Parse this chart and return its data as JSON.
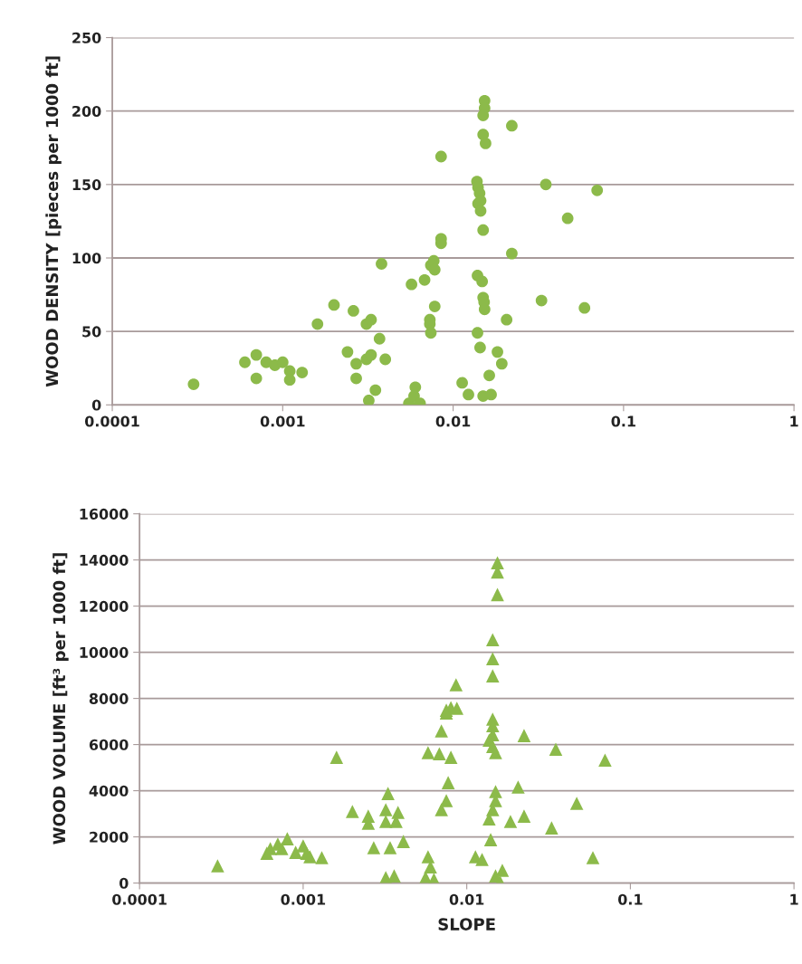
{
  "chart_data": [
    {
      "type": "scatter",
      "ylabel": "WOOD DENSITY [pieces per 1000 ft]",
      "log": "x",
      "grid": "y",
      "marker": "circle",
      "xlim": [
        0.0001,
        1
      ],
      "xticks": [
        0.0001,
        0.001,
        0.01,
        0.1,
        1
      ],
      "ylim": [
        0,
        250
      ],
      "yticks": [
        0,
        50,
        100,
        150,
        200,
        250
      ],
      "series": [
        {
          "color": "#8cba4a",
          "x": [
            0.0003,
            0.0006,
            0.0007,
            0.0007,
            0.0008,
            0.0009,
            0.001,
            0.0011,
            0.0011,
            0.0013,
            0.0016,
            0.002,
            0.0026,
            0.0024,
            0.0027,
            0.0027,
            0.0031,
            0.0031,
            0.0033,
            0.0033,
            0.0032,
            0.0035,
            0.0037,
            0.0038,
            0.004,
            0.0055,
            0.0059,
            0.006,
            0.0064,
            0.0057,
            0.0068,
            0.0074,
            0.0077,
            0.0078,
            0.0078,
            0.0073,
            0.0073,
            0.0074,
            0.0085,
            0.0085,
            0.0085,
            0.0153,
            0.0153,
            0.015,
            0.015,
            0.0155,
            0.0221,
            0.0138,
            0.014,
            0.0143,
            0.014,
            0.0145,
            0.0145,
            0.035,
            0.07,
            0.047,
            0.015,
            0.0221,
            0.033,
            0.059,
            0.0139,
            0.0148,
            0.015,
            0.0152,
            0.0153,
            0.0206,
            0.0139,
            0.0144,
            0.0182,
            0.0193,
            0.0163,
            0.0113,
            0.0123,
            0.015,
            0.0167
          ],
          "values": [
            14,
            29,
            34,
            18,
            29,
            27,
            29,
            23,
            17,
            22,
            55,
            68,
            64,
            36,
            28,
            18,
            55,
            31,
            34,
            58,
            3,
            10,
            45,
            96,
            31,
            1,
            6,
            12,
            1,
            82,
            85,
            95,
            98,
            92,
            67,
            55,
            58,
            49,
            113,
            110,
            169,
            207,
            202,
            197,
            184,
            178,
            190,
            152,
            148,
            144,
            137,
            139,
            132,
            150,
            146,
            127,
            119,
            103,
            71,
            66,
            88,
            84,
            73,
            70,
            65,
            58,
            49,
            39,
            36,
            28,
            20,
            15,
            7,
            6,
            7
          ]
        }
      ]
    },
    {
      "type": "scatter",
      "ylabel": "WOOD VOLUME [ft³ per 1000 ft]",
      "xlabel": "SLOPE",
      "log": "x",
      "grid": "y",
      "marker": "triangle",
      "xlim": [
        0.0001,
        1
      ],
      "xticks": [
        0.0001,
        0.001,
        0.01,
        0.1,
        1
      ],
      "ylim": [
        0,
        16000
      ],
      "yticks": [
        0,
        2000,
        4000,
        6000,
        8000,
        10000,
        12000,
        14000,
        16000
      ],
      "series": [
        {
          "color": "#8cba4a",
          "x": [
            0.0003,
            0.0006,
            0.00063,
            0.0007,
            0.0008,
            0.00074,
            0.0009,
            0.001,
            0.00105,
            0.0011,
            0.0013,
            0.0016,
            0.002,
            0.0154,
            0.0154,
            0.0154,
            0.0144,
            0.0144,
            0.0144,
            0.0086,
            0.008,
            0.0075,
            0.0087,
            0.0075,
            0.007,
            0.0058,
            0.0068,
            0.008,
            0.0144,
            0.0144,
            0.0144,
            0.0137,
            0.0144,
            0.015,
            0.0224,
            0.035,
            0.07,
            0.0033,
            0.0032,
            0.0025,
            0.0025,
            0.0032,
            0.0038,
            0.0037,
            0.0027,
            0.0034,
            0.0041,
            0.0032,
            0.0036,
            0.0077,
            0.0075,
            0.007,
            0.0058,
            0.006,
            0.0056,
            0.0063,
            0.015,
            0.015,
            0.0144,
            0.0137,
            0.0185,
            0.0206,
            0.0224,
            0.014,
            0.0113,
            0.0124,
            0.015,
            0.0165,
            0.016,
            0.033,
            0.047,
            0.059
          ],
          "values": [
            750,
            1290,
            1490,
            1690,
            1920,
            1490,
            1330,
            1610,
            1290,
            1140,
            1100,
            5450,
            3100,
            13880,
            13480,
            12500,
            10540,
            9720,
            8980,
            8590,
            7600,
            7490,
            7570,
            7370,
            6590,
            5650,
            5600,
            5450,
            7100,
            6820,
            6430,
            6190,
            5920,
            5650,
            6390,
            5800,
            5330,
            3880,
            3180,
            2900,
            2590,
            2670,
            3060,
            2670,
            1530,
            1530,
            1800,
            235,
            310,
            4350,
            3570,
            3180,
            1140,
            700,
            235,
            160,
            3960,
            3570,
            3180,
            2780,
            2670,
            4160,
            2900,
            1880,
            1140,
            1020,
            310,
            550,
            40,
            2390,
            3450,
            1100
          ]
        }
      ]
    }
  ]
}
